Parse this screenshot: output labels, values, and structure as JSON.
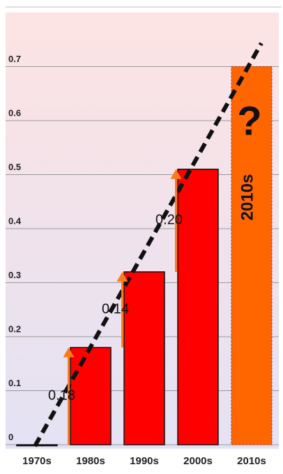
{
  "chart_data": {
    "type": "bar",
    "categories": [
      "1970s",
      "1980s",
      "1990s",
      "2000s",
      "2010s"
    ],
    "values": [
      0.0,
      0.18,
      0.32,
      0.51,
      0.7
    ],
    "colors": [
      "#ff0000",
      "#ff0000",
      "#ff0000",
      "#ff0000",
      "#ff6600"
    ],
    "ylim": [
      0,
      0.8
    ],
    "yticks": [
      0,
      0.1,
      0.2,
      0.3,
      0.4,
      0.5,
      0.6,
      0.7
    ],
    "grid": true,
    "increments": [
      "0.18",
      "0.14",
      "0.20"
    ],
    "annotations": [
      "?",
      "2010s"
    ]
  }
}
